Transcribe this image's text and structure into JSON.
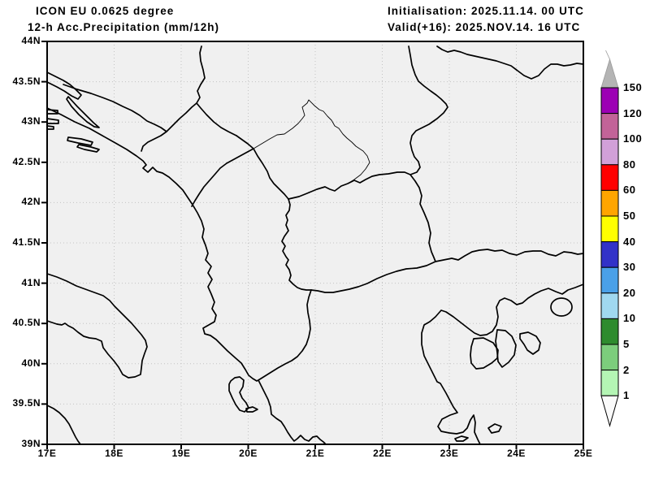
{
  "header": {
    "model": "ICON EU 0.0625 degree",
    "product": "12-h Acc.Precipitation (mm/12h)",
    "initialisation": "Initialisation: 2025.11.14. 00 UTC",
    "valid": "Valid(+16): 2025.NOV.14. 16 UTC"
  },
  "axes": {
    "lat_labels": [
      "44N",
      "43.5N",
      "43N",
      "42.5N",
      "42N",
      "41.5N",
      "41N",
      "40.5N",
      "40N",
      "39.5N",
      "39N"
    ],
    "lon_labels": [
      "17E",
      "18E",
      "19E",
      "20E",
      "21E",
      "22E",
      "23E",
      "24E",
      "25E"
    ]
  },
  "colorbar": {
    "unit": "mm/12h",
    "labels": [
      "150",
      "120",
      "100",
      "80",
      "60",
      "50",
      "40",
      "30",
      "20",
      "10",
      "5",
      "2",
      "1"
    ],
    "segments": [
      {
        "min": 120,
        "max": 150,
        "color": "#9c00b4"
      },
      {
        "min": 100,
        "max": 120,
        "color": "#c26398"
      },
      {
        "min": 80,
        "max": 100,
        "color": "#d2a0d8"
      },
      {
        "min": 60,
        "max": 80,
        "color": "#ff0000"
      },
      {
        "min": 50,
        "max": 60,
        "color": "#ffa500"
      },
      {
        "min": 40,
        "max": 50,
        "color": "#ffff00"
      },
      {
        "min": 30,
        "max": 40,
        "color": "#3232c8"
      },
      {
        "min": 20,
        "max": 30,
        "color": "#4aa0e8"
      },
      {
        "min": 10,
        "max": 20,
        "color": "#a0d8f0"
      },
      {
        "min": 5,
        "max": 10,
        "color": "#2e8b2e"
      },
      {
        "min": 2,
        "max": 5,
        "color": "#7ccd7c"
      },
      {
        "min": 1,
        "max": 2,
        "color": "#b4f5b4"
      }
    ],
    "overflow_color": "#b4b4b4",
    "underflow_color": "#fafafa"
  },
  "map_style": {
    "background": "#f0f0f0",
    "outline_color": "#000000",
    "grid_color": "#c3c3c3"
  }
}
